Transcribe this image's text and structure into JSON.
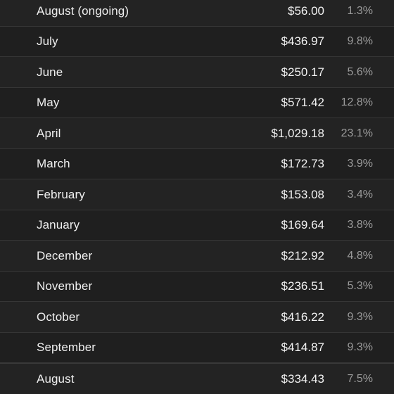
{
  "rows": [
    {
      "month": "August (ongoing)",
      "amount": "$56.00",
      "percent": "1.3%"
    },
    {
      "month": "July",
      "amount": "$436.97",
      "percent": "9.8%"
    },
    {
      "month": "June",
      "amount": "$250.17",
      "percent": "5.6%"
    },
    {
      "month": "May",
      "amount": "$571.42",
      "percent": "12.8%"
    },
    {
      "month": "April",
      "amount": "$1,029.18",
      "percent": "23.1%"
    },
    {
      "month": "March",
      "amount": "$172.73",
      "percent": "3.9%"
    },
    {
      "month": "February",
      "amount": "$153.08",
      "percent": "3.4%"
    },
    {
      "month": "January",
      "amount": "$169.64",
      "percent": "3.8%"
    },
    {
      "month": "December",
      "amount": "$212.92",
      "percent": "4.8%"
    },
    {
      "month": "November",
      "amount": "$236.51",
      "percent": "5.3%"
    },
    {
      "month": "October",
      "amount": "$416.22",
      "percent": "9.3%"
    },
    {
      "month": "September",
      "amount": "$414.87",
      "percent": "9.3%"
    },
    {
      "month": "August",
      "amount": "$334.43",
      "percent": "7.5%"
    }
  ]
}
